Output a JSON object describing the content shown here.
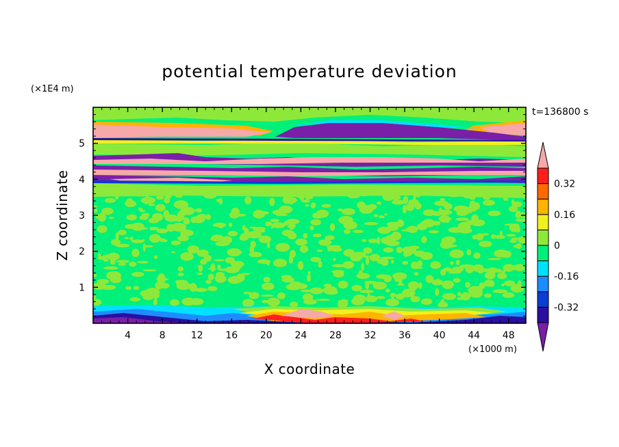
{
  "chart_data": {
    "type": "heatmap",
    "title": "potential temperature deviation",
    "xlabel": "X coordinate",
    "ylabel": "Z coordinate",
    "x_unit": "(×1000 m)",
    "y_unit": "(×1E4 m)",
    "time_label": "t=136800 s",
    "xlim": [
      0,
      50
    ],
    "ylim": [
      0,
      6
    ],
    "xticks": [
      "4",
      "8",
      "12",
      "16",
      "20",
      "24",
      "28",
      "32",
      "36",
      "40",
      "44",
      "48"
    ],
    "yticks": [
      "1",
      "2",
      "3",
      "4",
      "5"
    ],
    "colorbar": {
      "levels": [
        -0.4,
        -0.32,
        -0.24,
        -0.16,
        -0.08,
        0,
        0.08,
        0.16,
        0.24,
        0.32,
        0.4
      ],
      "tick_labels": [
        "-0.32",
        "-0.16",
        "0",
        "0.16",
        "0.32"
      ],
      "colors": [
        "#7a1fa8",
        "#2a0fa0",
        "#0a3cd6",
        "#1e8cff",
        "#00e0ff",
        "#00f07a",
        "#8ee83a",
        "#f0f01e",
        "#ffb400",
        "#ff6a00",
        "#ff1e1e",
        "#f7a8a8"
      ]
    }
  }
}
